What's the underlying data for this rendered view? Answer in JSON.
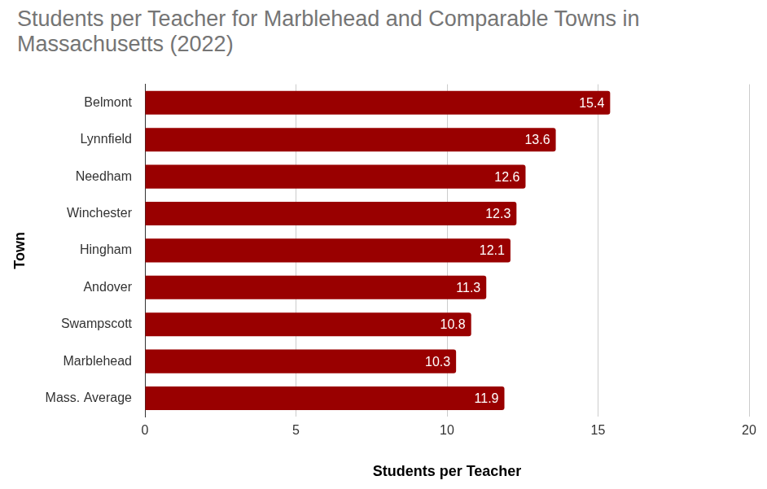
{
  "chart_data": {
    "type": "bar",
    "orientation": "horizontal",
    "title": "Students per Teacher for Marblehead and Comparable Towns in Massachusetts (2022)",
    "x_label": "Students per Teacher",
    "y_label": "Town",
    "categories": [
      "Belmont",
      "Lynnfield",
      "Needham",
      "Winchester",
      "Hingham",
      "Andover",
      "Swampscott",
      "Marblehead",
      "Mass. Average"
    ],
    "values": [
      15.4,
      13.6,
      12.6,
      12.3,
      12.1,
      11.3,
      10.8,
      10.3,
      11.9
    ],
    "color": "#990000",
    "xlim": [
      0,
      20
    ],
    "xticks": [
      0,
      5,
      10,
      15,
      20
    ],
    "grid": true,
    "data_labels": true
  }
}
